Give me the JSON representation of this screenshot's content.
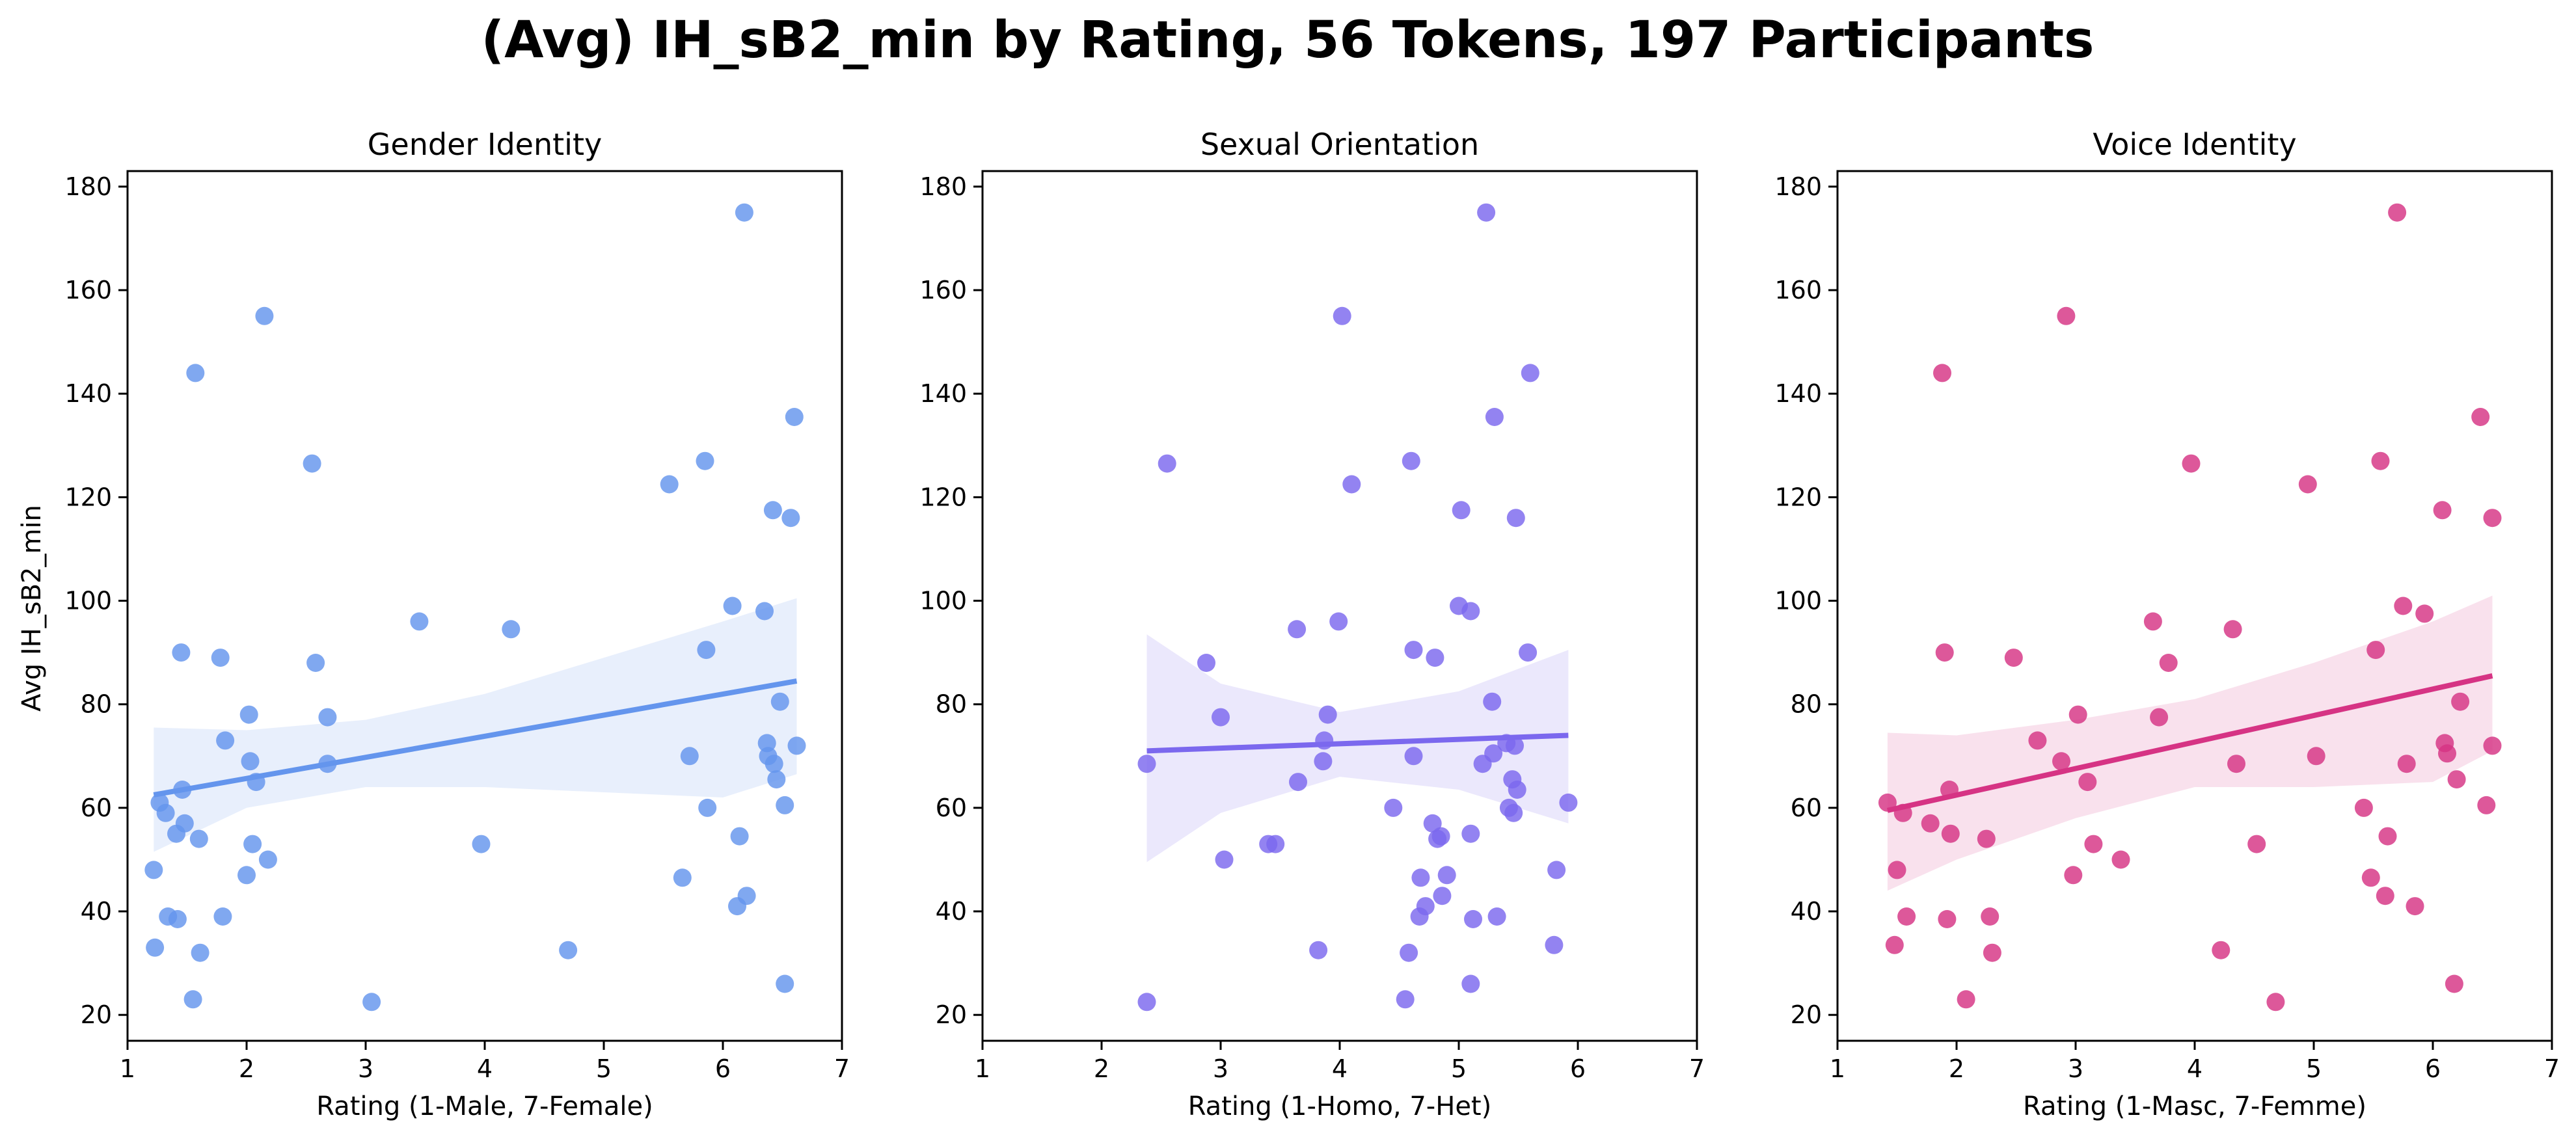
{
  "title": "(Avg) IH_sB2_min by Rating, 56 Tokens, 197 Participants",
  "chart_data": [
    {
      "type": "scatter",
      "title": "Gender Identity",
      "xlabel": "Rating (1-Male, 7-Female)",
      "ylabel": "Avg IH_sB2_min",
      "xlim": [
        1,
        7
      ],
      "ylim": [
        15,
        183
      ],
      "xticks": [
        "1",
        "2",
        "3",
        "4",
        "5",
        "6",
        "7"
      ],
      "yticks": [
        "20",
        "40",
        "60",
        "80",
        "100",
        "120",
        "140",
        "160",
        "180"
      ],
      "color": "#6495ED",
      "points": [
        [
          1.22,
          48
        ],
        [
          1.23,
          33
        ],
        [
          1.27,
          61
        ],
        [
          1.32,
          59
        ],
        [
          1.34,
          39
        ],
        [
          1.41,
          55
        ],
        [
          1.42,
          38.5
        ],
        [
          1.45,
          90
        ],
        [
          1.46,
          63.5
        ],
        [
          1.48,
          57
        ],
        [
          1.55,
          23
        ],
        [
          1.57,
          144
        ],
        [
          1.6,
          54
        ],
        [
          1.61,
          32
        ],
        [
          1.78,
          89
        ],
        [
          1.8,
          39
        ],
        [
          1.82,
          73
        ],
        [
          2.0,
          47
        ],
        [
          2.02,
          78
        ],
        [
          2.03,
          69
        ],
        [
          2.05,
          53
        ],
        [
          2.08,
          65
        ],
        [
          2.15,
          155
        ],
        [
          2.18,
          50
        ],
        [
          2.55,
          126.5
        ],
        [
          2.58,
          88
        ],
        [
          2.68,
          77.5
        ],
        [
          2.68,
          68.5
        ],
        [
          3.05,
          22.5
        ],
        [
          3.45,
          96
        ],
        [
          3.97,
          53
        ],
        [
          4.22,
          94.5
        ],
        [
          4.7,
          32.5
        ],
        [
          5.55,
          122.5
        ],
        [
          5.66,
          46.5
        ],
        [
          5.72,
          70
        ],
        [
          5.85,
          127
        ],
        [
          5.86,
          90.5
        ],
        [
          5.87,
          60
        ],
        [
          6.08,
          99
        ],
        [
          6.12,
          41
        ],
        [
          6.14,
          54.5
        ],
        [
          6.18,
          175
        ],
        [
          6.2,
          43
        ],
        [
          6.35,
          98
        ],
        [
          6.37,
          72.5
        ],
        [
          6.38,
          70
        ],
        [
          6.42,
          117.5
        ],
        [
          6.43,
          68.5
        ],
        [
          6.45,
          65.5
        ],
        [
          6.48,
          80.5
        ],
        [
          6.52,
          60.5
        ],
        [
          6.52,
          26
        ],
        [
          6.57,
          116
        ],
        [
          6.6,
          135.5
        ],
        [
          6.62,
          72
        ]
      ],
      "regression": {
        "x": [
          1.22,
          6.62
        ],
        "y": [
          62.5,
          84.5
        ]
      },
      "ci_band": {
        "x": [
          1.22,
          2,
          3,
          4,
          5,
          6,
          6.62
        ],
        "lower": [
          51.5,
          60,
          64,
          64,
          63,
          62,
          66.5
        ],
        "upper": [
          75.5,
          75,
          77,
          82,
          89,
          96,
          100.5
        ]
      }
    },
    {
      "type": "scatter",
      "title": "Sexual Orientation",
      "xlabel": "Rating (1-Homo, 7-Het)",
      "ylabel": "",
      "xlim": [
        1,
        7
      ],
      "ylim": [
        15,
        183
      ],
      "xticks": [
        "1",
        "2",
        "3",
        "4",
        "5",
        "6",
        "7"
      ],
      "yticks": [
        "20",
        "40",
        "60",
        "80",
        "100",
        "120",
        "140",
        "160",
        "180"
      ],
      "color": "#7B68EE",
      "points": [
        [
          2.38,
          22.5
        ],
        [
          2.38,
          68.5
        ],
        [
          2.55,
          126.5
        ],
        [
          2.88,
          88
        ],
        [
          3.0,
          77.5
        ],
        [
          3.03,
          50
        ],
        [
          3.4,
          53
        ],
        [
          3.46,
          53
        ],
        [
          3.64,
          94.5
        ],
        [
          3.65,
          65
        ],
        [
          3.82,
          32.5
        ],
        [
          3.86,
          69
        ],
        [
          3.87,
          73
        ],
        [
          3.9,
          78
        ],
        [
          3.99,
          96
        ],
        [
          4.02,
          155
        ],
        [
          4.1,
          122.5
        ],
        [
          4.45,
          60
        ],
        [
          4.55,
          23
        ],
        [
          4.58,
          32
        ],
        [
          4.6,
          127
        ],
        [
          4.62,
          90.5
        ],
        [
          4.62,
          70
        ],
        [
          4.67,
          39
        ],
        [
          4.68,
          46.5
        ],
        [
          4.72,
          41
        ],
        [
          4.78,
          57
        ],
        [
          4.8,
          89
        ],
        [
          4.82,
          54
        ],
        [
          4.85,
          54.5
        ],
        [
          4.86,
          43
        ],
        [
          4.9,
          47
        ],
        [
          5.0,
          99
        ],
        [
          5.02,
          117.5
        ],
        [
          5.1,
          26
        ],
        [
          5.1,
          98
        ],
        [
          5.1,
          55
        ],
        [
          5.12,
          38.5
        ],
        [
          5.2,
          68.5
        ],
        [
          5.23,
          175
        ],
        [
          5.28,
          80.5
        ],
        [
          5.29,
          70.5
        ],
        [
          5.3,
          135.5
        ],
        [
          5.32,
          39
        ],
        [
          5.4,
          72.5
        ],
        [
          5.42,
          60
        ],
        [
          5.45,
          65.5
        ],
        [
          5.46,
          59
        ],
        [
          5.47,
          72
        ],
        [
          5.48,
          116
        ],
        [
          5.49,
          63.5
        ],
        [
          5.58,
          90
        ],
        [
          5.6,
          144
        ],
        [
          5.8,
          33.5
        ],
        [
          5.82,
          48
        ],
        [
          5.92,
          61
        ]
      ],
      "regression": {
        "x": [
          2.38,
          5.92
        ],
        "y": [
          71,
          74
        ]
      },
      "ci_band": {
        "x": [
          2.38,
          3,
          4,
          5,
          5.92
        ],
        "lower": [
          49.5,
          59,
          66,
          63.5,
          57
        ],
        "upper": [
          93.5,
          84,
          78.5,
          82.5,
          90.5
        ]
      }
    },
    {
      "type": "scatter",
      "title": "Voice Identity",
      "xlabel": "Rating (1-Masc, 7-Femme)",
      "ylabel": "",
      "xlim": [
        1,
        7
      ],
      "ylim": [
        15,
        183
      ],
      "xticks": [
        "1",
        "2",
        "3",
        "4",
        "5",
        "6",
        "7"
      ],
      "yticks": [
        "20",
        "40",
        "60",
        "80",
        "100",
        "120",
        "140",
        "160",
        "180"
      ],
      "color": "#D63384",
      "points": [
        [
          1.42,
          61
        ],
        [
          1.48,
          33.5
        ],
        [
          1.5,
          48
        ],
        [
          1.55,
          59
        ],
        [
          1.58,
          39
        ],
        [
          1.78,
          57
        ],
        [
          1.88,
          144
        ],
        [
          1.9,
          90
        ],
        [
          1.92,
          38.5
        ],
        [
          1.94,
          63.5
        ],
        [
          1.95,
          55
        ],
        [
          2.08,
          23
        ],
        [
          2.25,
          54
        ],
        [
          2.28,
          39
        ],
        [
          2.3,
          32
        ],
        [
          2.48,
          89
        ],
        [
          2.68,
          73
        ],
        [
          2.88,
          69
        ],
        [
          2.92,
          155
        ],
        [
          2.98,
          47
        ],
        [
          3.02,
          78
        ],
        [
          3.1,
          65
        ],
        [
          3.15,
          53
        ],
        [
          3.38,
          50
        ],
        [
          3.65,
          96
        ],
        [
          3.7,
          77.5
        ],
        [
          3.78,
          88
        ],
        [
          3.97,
          126.5
        ],
        [
          4.22,
          32.5
        ],
        [
          4.32,
          94.5
        ],
        [
          4.35,
          68.5
        ],
        [
          4.52,
          53
        ],
        [
          4.68,
          22.5
        ],
        [
          4.95,
          122.5
        ],
        [
          5.02,
          70
        ],
        [
          5.42,
          60
        ],
        [
          5.48,
          46.5
        ],
        [
          5.52,
          90.5
        ],
        [
          5.56,
          127
        ],
        [
          5.6,
          43
        ],
        [
          5.62,
          54.5
        ],
        [
          5.7,
          175
        ],
        [
          5.75,
          99
        ],
        [
          5.78,
          68.5
        ],
        [
          5.85,
          41
        ],
        [
          5.93,
          97.5
        ],
        [
          6.08,
          117.5
        ],
        [
          6.1,
          72.5
        ],
        [
          6.12,
          70.5
        ],
        [
          6.18,
          26
        ],
        [
          6.2,
          65.5
        ],
        [
          6.23,
          80.5
        ],
        [
          6.4,
          135.5
        ],
        [
          6.45,
          60.5
        ],
        [
          6.5,
          72
        ],
        [
          6.5,
          116
        ]
      ],
      "regression": {
        "x": [
          1.42,
          6.5
        ],
        "y": [
          59.5,
          85.5
        ]
      },
      "ci_band": {
        "x": [
          1.42,
          2,
          3,
          4,
          5,
          6,
          6.5
        ],
        "lower": [
          44,
          50,
          58,
          64,
          64,
          65,
          71
        ],
        "upper": [
          74.5,
          74,
          77,
          81,
          88,
          96,
          101
        ]
      }
    }
  ]
}
